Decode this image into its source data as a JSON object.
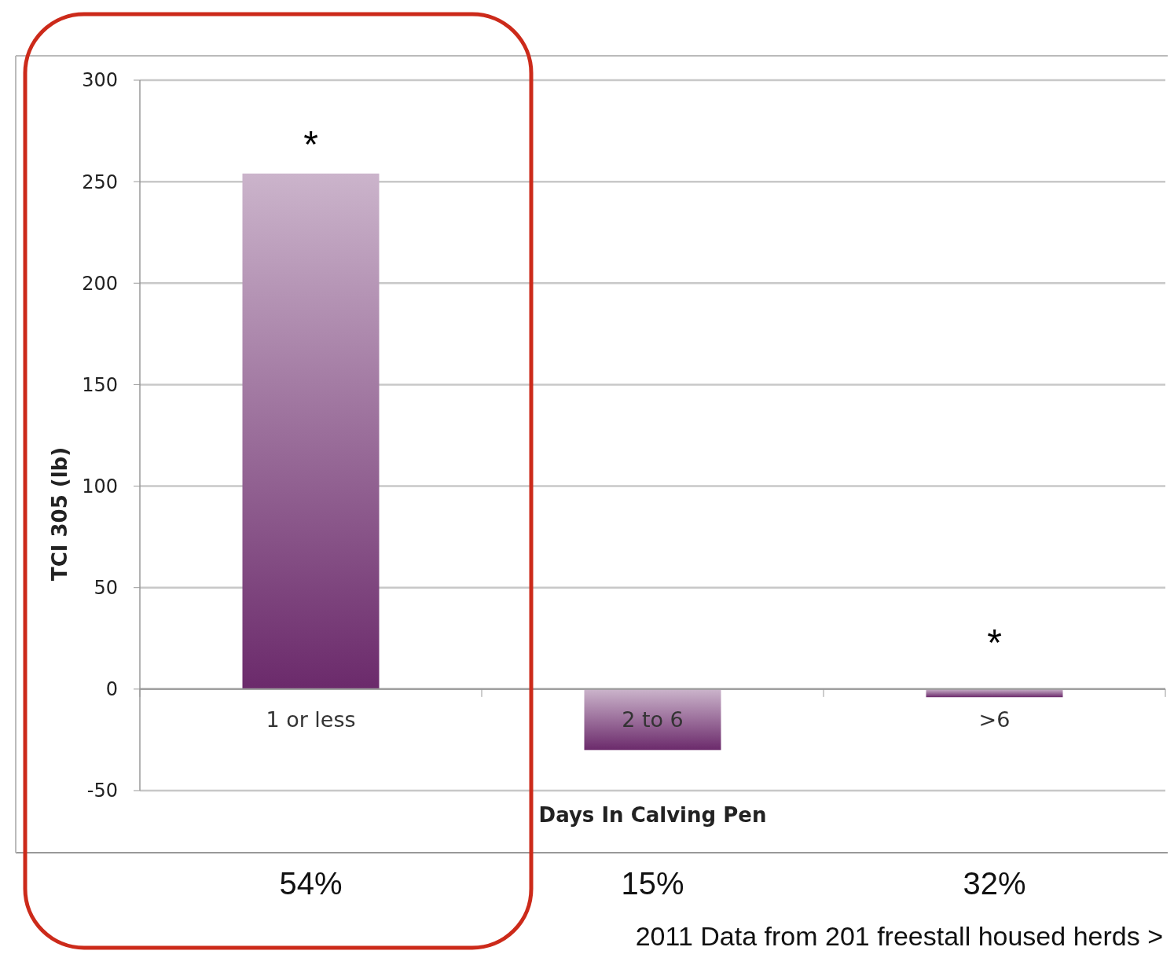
{
  "chart_data": {
    "type": "bar",
    "xlabel": "Days In Calving Pen",
    "ylabel": "TCI 305 (lb)",
    "categories": [
      "1 or less",
      "2 to 6",
      ">6"
    ],
    "values": [
      254,
      -30,
      -4
    ],
    "color": "#6b2a6b",
    "ylim": [
      -50,
      300
    ],
    "yticks": [
      -50,
      0,
      50,
      100,
      150,
      200,
      250,
      300
    ],
    "grid": "y",
    "annotations": [
      "*",
      "*",
      "54%",
      "15%",
      "32%",
      "2011 Data from 201 freestall housed herds >"
    ]
  }
}
